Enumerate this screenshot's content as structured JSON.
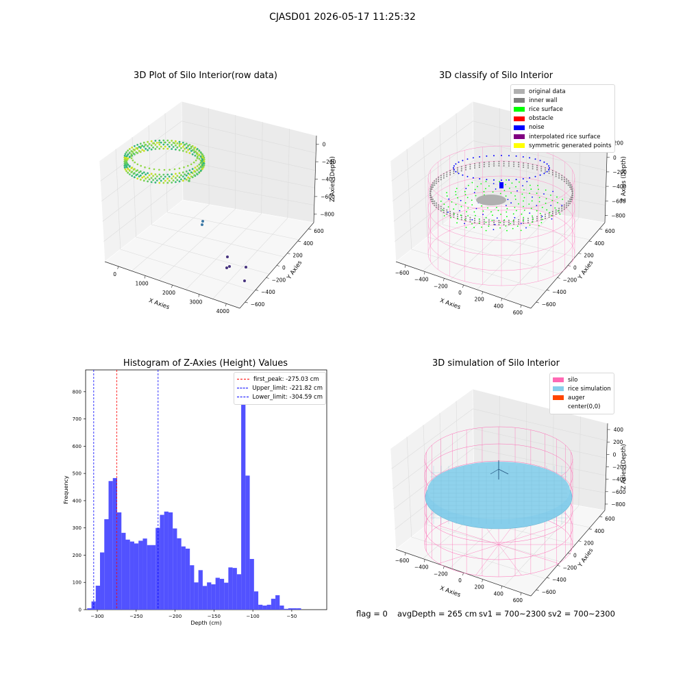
{
  "figure_title": "CJASD01 2026-05-17 11:25:32",
  "status": {
    "flag": "flag = 0",
    "avg_depth": "avgDepth = 265 cm",
    "sv1": "sv1 = 700~2300",
    "sv2": "sv2 = 700~2300"
  },
  "colors": {
    "original_data": "#b0b0b0",
    "inner_wall": "#7f7f7f",
    "rice_surface": "#00ff00",
    "obstacle": "#ff0000",
    "noise": "#0000ff",
    "interpolated_rice_surface": "#800080",
    "symmetric_generated_points": "#ffff00",
    "silo": "#ff69b4",
    "rice_simulation": "#87ceeb",
    "auger": "#ff4500",
    "hist_bar": "#5252ff",
    "first_peak_line": "#ff0000",
    "limit_lines": "#0000ff"
  },
  "chart_data": [
    {
      "type": "scatter",
      "subtype": "3d",
      "title": "3D Plot of Silo Interior(row data)",
      "xlabel": "X Axies",
      "ylabel": "Y Axies",
      "zlabel": "Z Axies (Depth)",
      "x_ticks": [
        "0",
        "1000",
        "2000",
        "3000",
        "4000"
      ],
      "y_ticks": [
        "600",
        "400",
        "200",
        "0",
        "−200",
        "−400",
        "−600"
      ],
      "z_ticks": [
        "0",
        "−200",
        "−400",
        "−600",
        "−800"
      ],
      "description_colormap": "viridis by depth",
      "outlier_points": [
        {
          "x": 2200,
          "y": 300,
          "z": -420
        },
        {
          "x": 2300,
          "y": 250,
          "z": -450
        },
        {
          "x": 3700,
          "y": 100,
          "z": -900
        },
        {
          "x": 3800,
          "y": 0,
          "z": -920
        },
        {
          "x": 3900,
          "y": -50,
          "z": -940
        },
        {
          "x": 4200,
          "y": -300,
          "z": -930
        },
        {
          "x": 4100,
          "y": -400,
          "z": -980
        }
      ]
    },
    {
      "type": "scatter",
      "subtype": "3d",
      "title": "3D classify of Silo Interior",
      "xlabel": "X Axies",
      "ylabel": "Y Axies",
      "zlabel": "Z Axies (Depth)",
      "x_ticks": [
        "−600",
        "−400",
        "−200",
        "0",
        "200",
        "400",
        "600"
      ],
      "y_ticks": [
        "600",
        "400",
        "200",
        "0",
        "−200",
        "−400",
        "−600"
      ],
      "z_ticks": [
        "200",
        "0",
        "−200",
        "−400",
        "−600",
        "−800"
      ],
      "legend": [
        "original data",
        "inner wall",
        "rice surface",
        "obstacle",
        "noise",
        "interpolated rice surface",
        "symmetric generated points"
      ]
    },
    {
      "type": "bar",
      "subtype": "histogram",
      "title": "Histogram of Z-Axies (Height) Values",
      "xlabel": "Depth (cm)",
      "ylabel": "Frequency",
      "xlim": [
        -315,
        -5
      ],
      "ylim": [
        0,
        880
      ],
      "x_ticks": [
        -300,
        -250,
        -200,
        -150,
        -100,
        -50
      ],
      "y_ticks": [
        0,
        100,
        200,
        300,
        400,
        500,
        600,
        700,
        800
      ],
      "bin_start": -313,
      "bin_width": 5.5,
      "values": [
        5,
        30,
        88,
        210,
        332,
        472,
        483,
        357,
        282,
        257,
        250,
        243,
        253,
        261,
        237,
        237,
        300,
        348,
        360,
        357,
        298,
        262,
        232,
        224,
        163,
        100,
        145,
        87,
        100,
        93,
        117,
        113,
        99,
        155,
        153,
        130,
        843,
        492,
        186,
        67,
        18,
        15,
        18,
        40,
        53,
        15,
        3,
        5,
        5,
        5
      ],
      "vlines": [
        {
          "x": -275.03,
          "label": "first_peak: -275.03 cm",
          "color": "#ff0000"
        },
        {
          "x": -221.82,
          "label": "Upper_limit: -221.82 cm",
          "color": "#0000ff"
        },
        {
          "x": -304.59,
          "label": "Lower_limit: -304.59 cm",
          "color": "#0000ff"
        }
      ]
    },
    {
      "type": "scatter",
      "subtype": "3d",
      "title": "3D simulation of Silo Interior",
      "xlabel": "X Axies",
      "ylabel": "Y Axies",
      "zlabel": "Z Axies (Depth)",
      "x_ticks": [
        "−600",
        "−400",
        "−200",
        "0",
        "200",
        "400",
        "600"
      ],
      "y_ticks": [
        "600",
        "400",
        "200",
        "0",
        "−200",
        "−400",
        "−600"
      ],
      "z_ticks": [
        "400",
        "200",
        "0",
        "−200",
        "−400",
        "−600",
        "−800"
      ],
      "legend": [
        "silo",
        "rice simulation",
        "auger",
        "center(0,0)"
      ]
    }
  ]
}
